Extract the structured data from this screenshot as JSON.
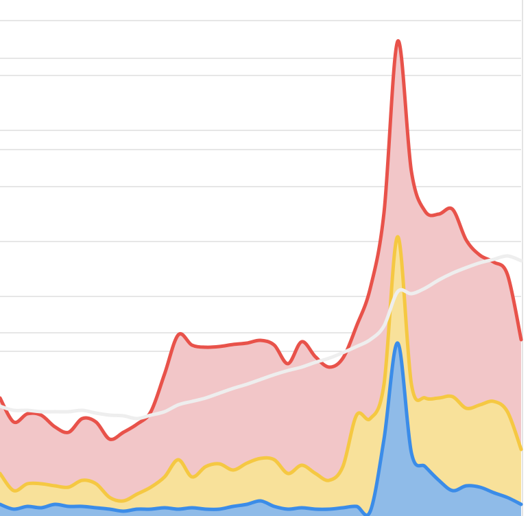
{
  "chart_data": {
    "type": "area",
    "xlim": [
      0,
      770
    ],
    "ylim": [
      0,
      752
    ],
    "yticks": [
      722,
      667,
      642,
      562,
      534,
      480,
      400,
      320,
      267,
      240
    ],
    "grid": true,
    "grid_color": "#dddddd",
    "x": [
      0,
      20,
      40,
      60,
      80,
      100,
      120,
      140,
      160,
      180,
      200,
      220,
      240,
      260,
      280,
      300,
      320,
      340,
      360,
      380,
      400,
      420,
      440,
      460,
      480,
      500,
      520,
      540,
      560,
      580,
      600,
      620,
      640,
      660,
      680,
      700,
      720,
      740,
      760
    ],
    "series": [
      {
        "color": "#e8524a",
        "fill": "#f2c6c8",
        "values": [
          172,
          137,
          149,
          147,
          130,
          122,
          142,
          137,
          112,
          122,
          134,
          152,
          207,
          264,
          249,
          246,
          247,
          250,
          252,
          256,
          249,
          222,
          254,
          232,
          217,
          230,
          277,
          332,
          442,
          692,
          502,
          444,
          440,
          447,
          402,
          380,
          370,
          352,
          257
        ]
      },
      {
        "color": "#f5c842",
        "fill": "#f8e19a",
        "values": [
          62,
          37,
          47,
          47,
          44,
          42,
          52,
          47,
          27,
          22,
          32,
          42,
          57,
          82,
          57,
          72,
          76,
          67,
          77,
          84,
          82,
          62,
          74,
          62,
          52,
          72,
          147,
          142,
          192,
          407,
          192,
          172,
          172,
          174,
          157,
          162,
          167,
          152,
          97
        ]
      },
      {
        "color": "#3b8ce8",
        "fill": "#8fbbe8",
        "values": [
          17,
          10,
          14,
          12,
          17,
          14,
          14,
          12,
          10,
          7,
          10,
          10,
          12,
          10,
          12,
          10,
          10,
          14,
          17,
          22,
          14,
          10,
          12,
          10,
          10,
          12,
          14,
          7,
          112,
          252,
          92,
          72,
          52,
          37,
          44,
          42,
          34,
          27,
          17
        ]
      },
      {
        "color": "#eeeeee",
        "values": [
          160,
          154,
          154,
          152,
          152,
          152,
          154,
          150,
          147,
          146,
          142,
          147,
          152,
          162,
          167,
          172,
          179,
          186,
          192,
          199,
          206,
          212,
          217,
          224,
          230,
          238,
          247,
          257,
          277,
          327,
          324,
          332,
          344,
          354,
          362,
          369,
          374,
          379,
          372
        ]
      }
    ]
  }
}
